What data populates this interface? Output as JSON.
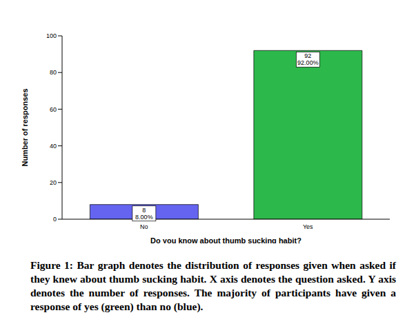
{
  "chart_data": {
    "type": "bar",
    "categories": [
      "No",
      "Yes"
    ],
    "values": [
      8,
      92
    ],
    "value_labels": [
      "8\n8.00%",
      "92\n92.00%"
    ],
    "colors": [
      "#6464f0",
      "#2db84b"
    ],
    "x_label": "Do you know about thumb sucking habit?",
    "y_label": "Number of responses",
    "ylim": [
      0,
      100
    ],
    "yticks": [
      0,
      20,
      40,
      60,
      80,
      100
    ],
    "grid": false,
    "data_labels": true,
    "caption": "Figure 1: Bar graph denotes the distribution of responses given when asked if they knew about thumb sucking habit. X axis denotes the question asked. Y axis denotes the number of responses. The majority of participants have given a response of yes (green) than no (blue)."
  }
}
